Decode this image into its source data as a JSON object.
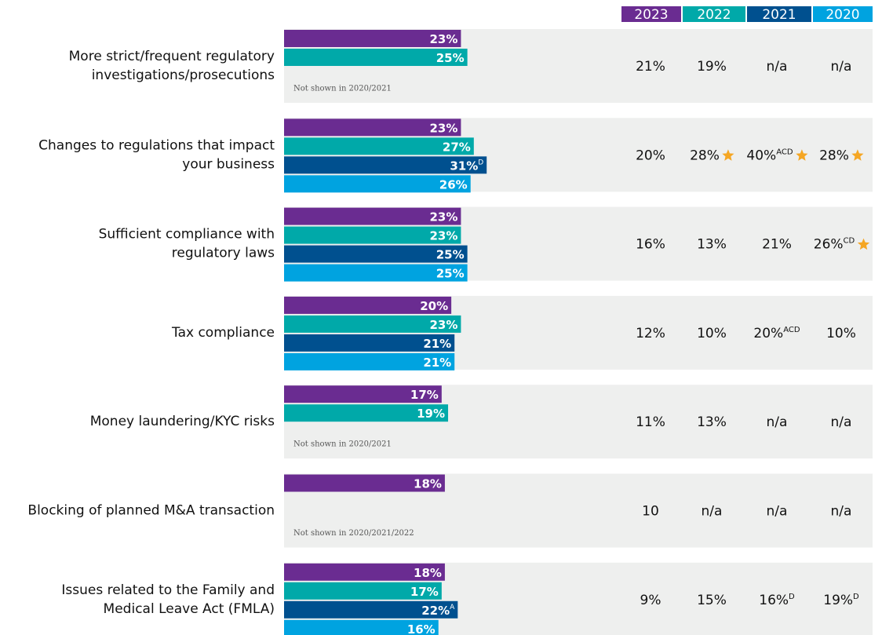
{
  "chart_data": {
    "type": "bar",
    "categories": [
      [
        "More strict/frequent regulatory",
        "investigations/prosecutions"
      ],
      [
        "Changes to regulations that impact",
        "your business"
      ],
      [
        "Sufficient compliance with",
        "regulatory laws"
      ],
      [
        "Tax compliance"
      ],
      [
        "Money laundering/KYC risks"
      ],
      [
        "Blocking of planned M&A transaction"
      ],
      [
        "Issues related to the Family and",
        "Medical Leave Act (FMLA)"
      ]
    ],
    "series": [
      {
        "name": "2023",
        "color": "#6a2c91",
        "values": [
          23,
          23,
          23,
          20,
          17,
          18,
          18
        ],
        "value_labels": [
          "23%",
          "23%",
          "23%",
          "20%",
          "17%",
          "18%",
          "18%"
        ],
        "sig": [
          null,
          null,
          null,
          null,
          null,
          null,
          null
        ]
      },
      {
        "name": "2022",
        "color": "#00a9a9",
        "values": [
          25,
          27,
          23,
          23,
          19,
          null,
          17
        ],
        "value_labels": [
          "25%",
          "27%",
          "23%",
          "23%",
          "19%",
          null,
          "17%"
        ],
        "sig": [
          null,
          null,
          null,
          null,
          null,
          null,
          null
        ]
      },
      {
        "name": "2021",
        "color": "#00508f",
        "values": [
          null,
          31,
          25,
          21,
          null,
          null,
          22
        ],
        "value_labels": [
          null,
          "31%",
          "25%",
          "21%",
          null,
          null,
          "22%"
        ],
        "sig": [
          null,
          "D",
          null,
          null,
          null,
          null,
          "A"
        ]
      },
      {
        "name": "2020",
        "color": "#00a3e0",
        "values": [
          null,
          26,
          25,
          21,
          null,
          null,
          16
        ],
        "value_labels": [
          null,
          "26%",
          "25%",
          "21%",
          null,
          null,
          "16%"
        ],
        "sig": [
          null,
          null,
          null,
          null,
          null,
          null,
          null
        ]
      }
    ],
    "notes": [
      "Not shown in 2020/2021",
      null,
      null,
      null,
      "Not shown in 2020/2021",
      "Not shown in 2020/2021/2022",
      null
    ],
    "xlim": [
      -32,
      100
    ],
    "star_color": "#f5a623",
    "row_color": "#eeefee",
    "table": [
      [
        "21%",
        "19%",
        "n/a",
        "n/a"
      ],
      [
        "20%",
        {
          "text": "28%",
          "star": true
        },
        {
          "text": "40%",
          "sup": "ACD",
          "star": true
        },
        {
          "text": "28%",
          "star": true
        }
      ],
      [
        "16%",
        "13%",
        "21%",
        {
          "text": "26%",
          "sup": "CD",
          "star": true
        }
      ],
      [
        "12%",
        "10%",
        {
          "text": "20%",
          "sup": "ACD"
        },
        "10%"
      ],
      [
        "11%",
        "13%",
        "n/a",
        "n/a"
      ],
      [
        "10",
        "n/a",
        "n/a",
        "n/a"
      ],
      [
        "9%",
        "15%",
        {
          "text": "16%",
          "sup": "D"
        },
        {
          "text": "19%",
          "sup": "D"
        }
      ]
    ]
  }
}
